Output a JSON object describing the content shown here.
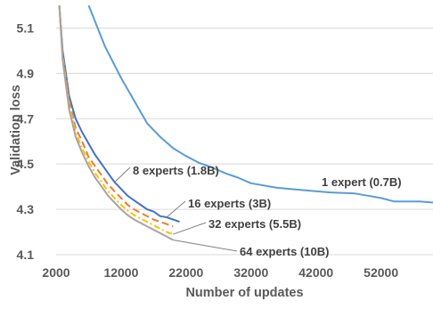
{
  "chart_data": {
    "type": "line",
    "title": "",
    "xlabel": "Number of updates",
    "ylabel": "Validation loss",
    "xlim": [
      2000,
      60000
    ],
    "ylim": [
      4.1,
      5.2
    ],
    "x_ticks": [
      "2000",
      "12000",
      "22000",
      "32000",
      "42000",
      "52000"
    ],
    "y_ticks": [
      "4.1",
      "4.3",
      "4.5",
      "4.7",
      "4.9",
      "5.1"
    ],
    "grid": "horizontal",
    "series": [
      {
        "name": "1 expert (0.7B)",
        "color": "#5b9bd5",
        "dash": "solid",
        "x": [
          7000,
          9500,
          12000,
          14000,
          16000,
          18000,
          20000,
          22000,
          24000,
          26000,
          28000,
          30000,
          32000,
          36000,
          40000,
          44000,
          48000,
          50000,
          52000,
          54000,
          56000,
          58000,
          60000
        ],
        "y": [
          5.2,
          5.02,
          4.88,
          4.78,
          4.68,
          4.62,
          4.57,
          4.535,
          4.505,
          4.485,
          4.46,
          4.44,
          4.415,
          4.395,
          4.385,
          4.375,
          4.37,
          4.36,
          4.35,
          4.335,
          4.335,
          4.335,
          4.33
        ]
      },
      {
        "name": "8 experts (1.8B)",
        "color": "#4472c4",
        "dash": "solid",
        "x": [
          2500,
          3000,
          4000,
          5000,
          6000,
          7000,
          8000,
          9000,
          10000,
          11000,
          12000,
          13000,
          14000,
          15000,
          16000,
          17000,
          18000,
          19000,
          20000,
          21000
        ],
        "y": [
          5.2,
          5.0,
          4.8,
          4.7,
          4.64,
          4.59,
          4.54,
          4.5,
          4.46,
          4.42,
          4.39,
          4.36,
          4.34,
          4.32,
          4.3,
          4.29,
          4.27,
          4.265,
          4.255,
          4.245
        ]
      },
      {
        "name": "16 experts (3B)",
        "color": "#ed7d31",
        "dash": "8,4",
        "x": [
          2500,
          3000,
          4000,
          5000,
          6000,
          7000,
          8000,
          9000,
          10000,
          11000,
          12000,
          13000,
          14000,
          15000,
          16000,
          17000,
          18000,
          19000,
          20000
        ],
        "y": [
          5.2,
          4.98,
          4.78,
          4.66,
          4.6,
          4.53,
          4.49,
          4.45,
          4.41,
          4.38,
          4.35,
          4.32,
          4.3,
          4.285,
          4.27,
          4.255,
          4.245,
          4.235,
          4.225
        ]
      },
      {
        "name": "32 experts (5.5B)",
        "color": "#ffc000",
        "dash": "7,3,2,3",
        "x": [
          2500,
          3000,
          4000,
          5000,
          6000,
          7000,
          8000,
          9000,
          10000,
          11000,
          12000,
          13000,
          14000,
          15000,
          16000,
          17000,
          18000,
          19000,
          20000
        ],
        "y": [
          5.2,
          4.97,
          4.76,
          4.64,
          4.57,
          4.51,
          4.46,
          4.42,
          4.38,
          4.35,
          4.32,
          4.295,
          4.275,
          4.26,
          4.245,
          4.23,
          4.215,
          4.2,
          4.19
        ]
      },
      {
        "name": "64 experts (10B)",
        "color": "#a5a5a5",
        "dash": "solid",
        "x": [
          2500,
          3000,
          4000,
          5000,
          6000,
          7000,
          8000,
          9000,
          10000,
          11000,
          12000,
          13000,
          14000,
          15000,
          16000,
          17000,
          18000,
          19000,
          20000
        ],
        "y": [
          5.2,
          4.96,
          4.74,
          4.62,
          4.55,
          4.49,
          4.44,
          4.4,
          4.36,
          4.33,
          4.3,
          4.275,
          4.255,
          4.24,
          4.225,
          4.21,
          4.195,
          4.18,
          4.165
        ]
      }
    ],
    "annotations": [
      {
        "series": "8 experts (1.8B)",
        "text": "8 experts (1.8B)",
        "at_x": 11000,
        "at_y": 4.42
      },
      {
        "series": "16 experts (3B)",
        "text": "16 experts (3B)",
        "at_x": 19000,
        "at_y": 4.265
      },
      {
        "series": "32 experts (5.5B)",
        "text": "32 experts (5.5B)",
        "at_x": 20000,
        "at_y": 4.19
      },
      {
        "series": "64 experts (10B)",
        "text": "64 experts (10B)",
        "at_x": 20000,
        "at_y": 4.165
      },
      {
        "series": "1 expert (0.7B)",
        "text": "1 expert (0.7B)",
        "at_x": 0,
        "at_y": 0
      }
    ]
  }
}
